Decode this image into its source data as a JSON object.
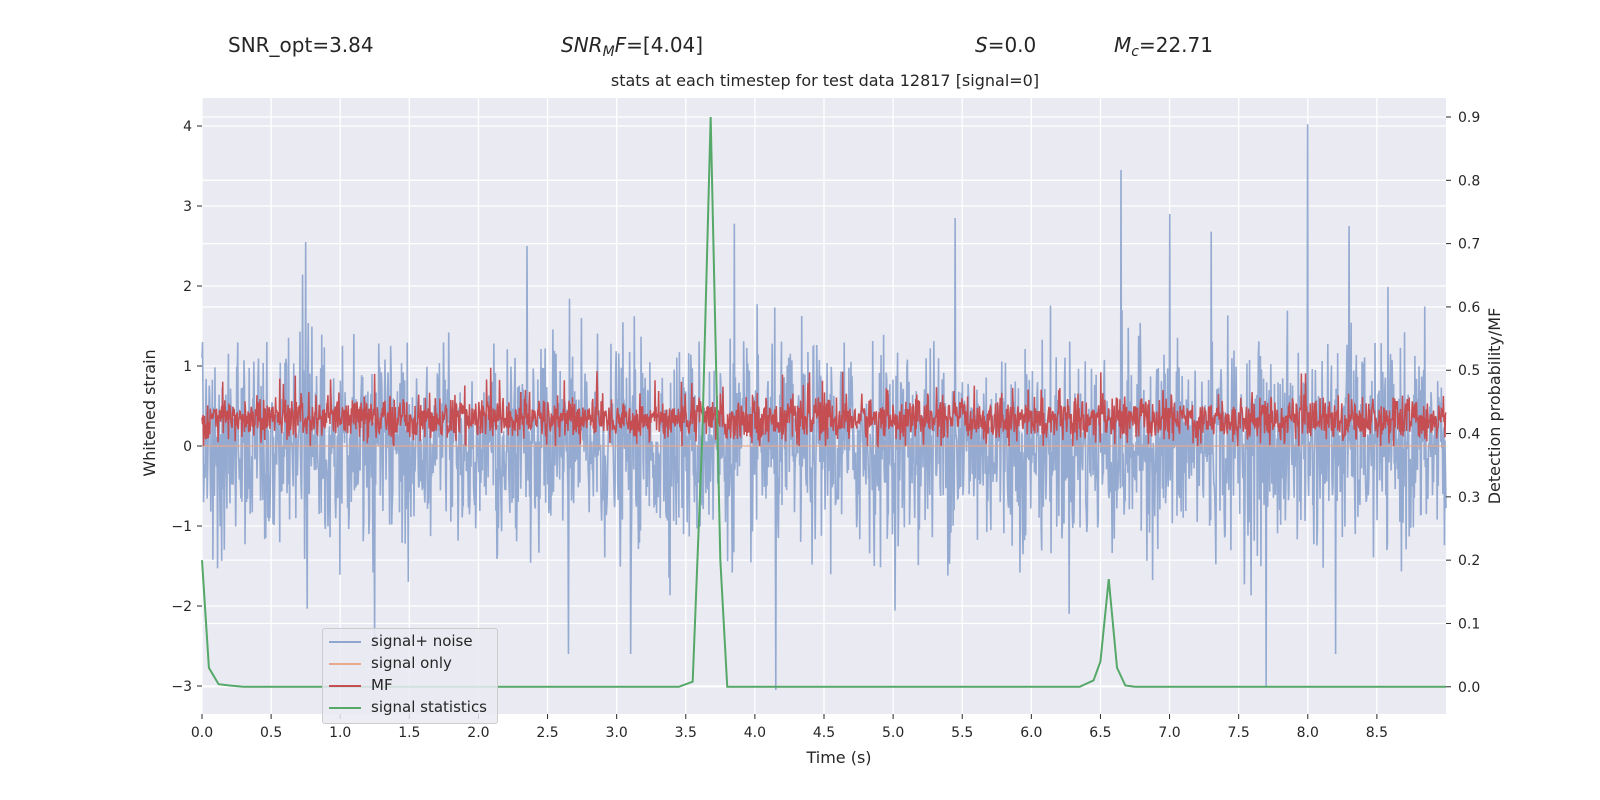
{
  "header": {
    "snr_opt": "SNR_opt=3.84",
    "snr_mf_base": "SNR",
    "snr_mf_sub": "M",
    "snr_mf_var": "F",
    "snr_mf_value": "=[4.04]",
    "s_var": "S",
    "s_value": "=0.0",
    "mc_var": "M",
    "mc_sub": "c",
    "mc_value": "=22.71"
  },
  "chart_data": {
    "type": "line",
    "title": "stats at each timestep for test data 12817 [signal=0]",
    "xlabel": "Time (s)",
    "ylabel": "Whitened strain",
    "y2label": "Detection probability/MF",
    "xlim": [
      0.0,
      9.0
    ],
    "ylim": [
      -3.35,
      4.35
    ],
    "y2lim": [
      -0.043,
      0.93
    ],
    "xticks": [
      0.0,
      0.5,
      1.0,
      1.5,
      2.0,
      2.5,
      3.0,
      3.5,
      4.0,
      4.5,
      5.0,
      5.5,
      6.0,
      6.5,
      7.0,
      7.5,
      8.0,
      8.5
    ],
    "xtick_labels": [
      "0.0",
      "0.5",
      "1.0",
      "1.5",
      "2.0",
      "2.5",
      "3.0",
      "3.5",
      "4.0",
      "4.5",
      "5.0",
      "5.5",
      "6.0",
      "6.5",
      "7.0",
      "7.5",
      "8.0",
      "8.5"
    ],
    "yticks": [
      -3,
      -2,
      -1,
      0,
      1,
      2,
      3,
      4
    ],
    "ytick_labels": [
      "−3",
      "−2",
      "−1",
      "0",
      "1",
      "2",
      "3",
      "4"
    ],
    "y2ticks": [
      0.0,
      0.1,
      0.2,
      0.3,
      0.4,
      0.5,
      0.6,
      0.7,
      0.8,
      0.9
    ],
    "y2tick_labels": [
      "0.0",
      "0.1",
      "0.2",
      "0.3",
      "0.4",
      "0.5",
      "0.6",
      "0.7",
      "0.8",
      "0.9"
    ],
    "grid": true,
    "legend_position": "lower-left",
    "colors": {
      "signal_noise": "#8fa6cf",
      "signal_only": "#e9a88b",
      "mf": "#c44e52",
      "statistics": "#55a868",
      "background": "#eaeaf2",
      "grid": "#ffffff"
    },
    "series": [
      {
        "name": "signal+ noise",
        "axis": "left",
        "description": "noise band approx. N(0,1) samples",
        "envelope": {
          "typical_upper": 1.6,
          "typical_lower": -1.6,
          "max": 4.05,
          "min": -3.05
        },
        "spikes": [
          {
            "x": 0.75,
            "y": 2.55
          },
          {
            "x": 2.35,
            "y": 2.5
          },
          {
            "x": 3.85,
            "y": 2.78
          },
          {
            "x": 5.45,
            "y": 2.85
          },
          {
            "x": 6.65,
            "y": 3.45
          },
          {
            "x": 7.0,
            "y": 2.9
          },
          {
            "x": 7.3,
            "y": 2.68
          },
          {
            "x": 8.0,
            "y": 4.02
          },
          {
            "x": 8.3,
            "y": 2.75
          },
          {
            "x": 1.25,
            "y": -2.55
          },
          {
            "x": 2.65,
            "y": -2.6
          },
          {
            "x": 3.1,
            "y": -2.6
          },
          {
            "x": 4.15,
            "y": -3.05
          },
          {
            "x": 7.7,
            "y": -3.0
          },
          {
            "x": 8.2,
            "y": -2.6
          }
        ]
      },
      {
        "name": "signal only",
        "axis": "left",
        "values": "zero"
      },
      {
        "name": "MF",
        "axis": "left",
        "description": "band approx. between 0.05 and 0.75",
        "envelope": {
          "typical_upper": 0.7,
          "typical_lower": 0.05,
          "max": 0.98
        }
      },
      {
        "name": "signal statistics",
        "axis": "right",
        "x": [
          0.0,
          0.05,
          0.12,
          0.2,
          0.3,
          3.45,
          3.55,
          3.62,
          3.68,
          3.75,
          3.8,
          3.9,
          4.0,
          6.35,
          6.45,
          6.5,
          6.56,
          6.62,
          6.68,
          6.75,
          9.0
        ],
        "y": [
          0.2,
          0.03,
          0.004,
          0.002,
          0.0,
          0.0,
          0.008,
          0.4,
          0.9,
          0.2,
          0.0,
          0.0,
          0.0,
          0.0,
          0.01,
          0.04,
          0.17,
          0.03,
          0.002,
          0.0,
          0.0
        ]
      }
    ]
  }
}
